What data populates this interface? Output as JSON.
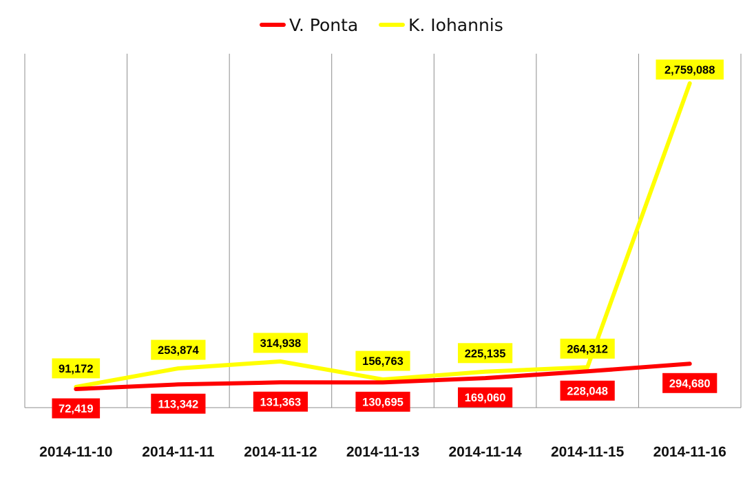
{
  "chart_data": {
    "type": "line",
    "categories": [
      "2014-11-10",
      "2014-11-11",
      "2014-11-12",
      "2014-11-13",
      "2014-11-14",
      "2014-11-15",
      "2014-11-16"
    ],
    "series": [
      {
        "name": "V. Ponta",
        "color": "#ff0000",
        "label_text_color": "#ffffff",
        "values": [
          72419,
          113342,
          131363,
          130695,
          169060,
          228048,
          294680
        ],
        "labels": [
          "72,419",
          "113,342",
          "131,363",
          "130,695",
          "169,060",
          "228,048",
          "294,680"
        ]
      },
      {
        "name": "K. Iohannis",
        "color": "#ffff00",
        "label_text_color": "#000000",
        "values": [
          91172,
          253874,
          314938,
          156763,
          225135,
          264312,
          2759088
        ],
        "labels": [
          "91,172",
          "253,874",
          "314,938",
          "156,763",
          "225,135",
          "264,312",
          "2,759,088"
        ]
      }
    ],
    "legend_position": "top",
    "grid": "vertical",
    "ylim": [
      0,
      3000000
    ]
  }
}
